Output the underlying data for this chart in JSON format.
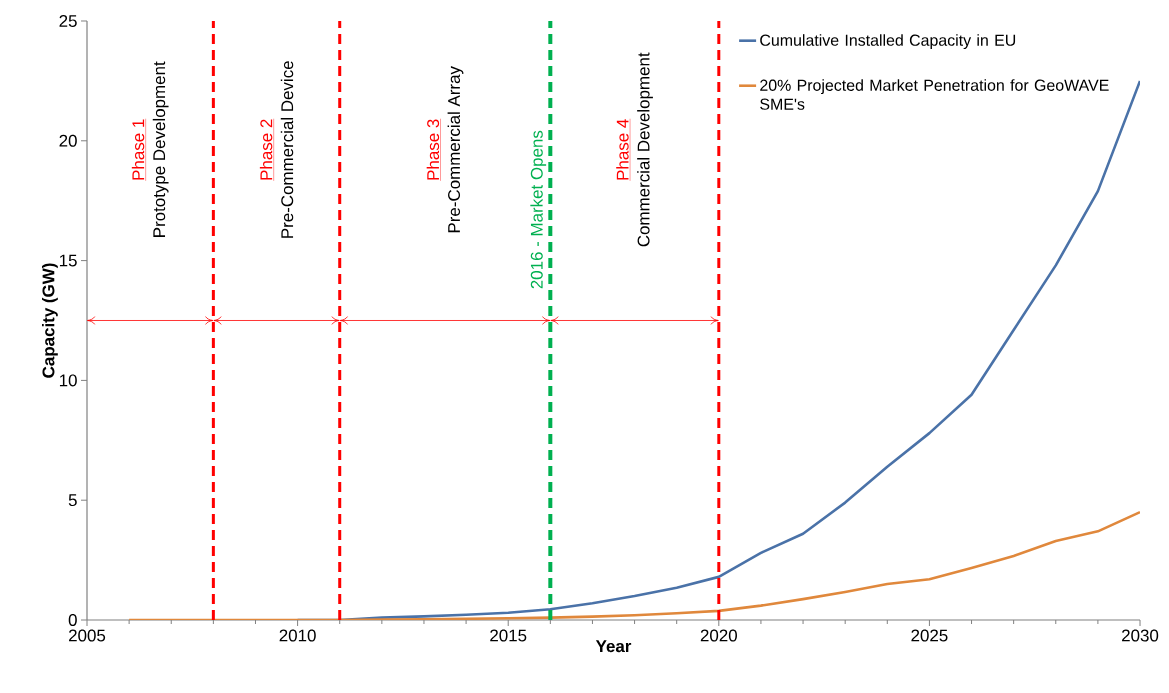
{
  "chart_data": {
    "type": "line",
    "xlabel": "Year",
    "ylabel": "Capacity (GW)",
    "x": [
      2006,
      2007,
      2008,
      2009,
      2010,
      2011,
      2012,
      2013,
      2014,
      2015,
      2016,
      2017,
      2018,
      2019,
      2020,
      2021,
      2022,
      2023,
      2024,
      2025,
      2026,
      2027,
      2028,
      2029,
      2030
    ],
    "series": [
      {
        "name": "Cumulative Installed Capacity in EU",
        "color": "#4a72a8",
        "values": [
          null,
          null,
          null,
          null,
          0,
          0,
          0.1,
          0.15,
          0.22,
          0.3,
          0.45,
          0.7,
          1.0,
          1.35,
          1.8,
          2.8,
          3.6,
          4.9,
          6.4,
          7.8,
          9.4,
          12.1,
          14.8,
          17.9,
          22.5
        ]
      },
      {
        "name": "20% Projected Market Penetration for GeoWAVE SME's",
        "color": "#e0883c",
        "values": [
          0,
          0,
          0,
          0,
          0,
          0,
          0.02,
          0.03,
          0.05,
          0.07,
          0.1,
          0.14,
          0.2,
          0.28,
          0.38,
          0.6,
          0.87,
          1.17,
          1.5,
          1.7,
          2.17,
          2.67,
          3.3,
          3.7,
          4.5
        ]
      }
    ],
    "xlim": [
      2005,
      2030
    ],
    "ylim": [
      0,
      25
    ],
    "xticks": [
      2005,
      2010,
      2015,
      2020,
      2025,
      2030
    ],
    "yticks": [
      0,
      5,
      10,
      15,
      20,
      25
    ],
    "ref_lines": [
      {
        "axis": "x",
        "value": 2008,
        "color": "#ff0000",
        "line_style": "dashed"
      },
      {
        "axis": "x",
        "value": 2011,
        "color": "#ff0000",
        "line_style": "dashed"
      },
      {
        "axis": "x",
        "value": 2016,
        "color": "#00b050",
        "line_style": "dashed",
        "label": "2016 - Market Opens"
      },
      {
        "axis": "x",
        "value": 2020,
        "color": "#ff0000",
        "line_style": "dashed"
      }
    ],
    "annotations": [
      "Phase 1",
      "Prototype Development",
      "Phase 2",
      "Pre-Commercial Device",
      "Phase 3",
      "Pre-Commercial Array",
      "Phase 4",
      "Commercial Development"
    ],
    "legend": "top right",
    "grid": false,
    "marker": "none",
    "line_style": "solid"
  }
}
